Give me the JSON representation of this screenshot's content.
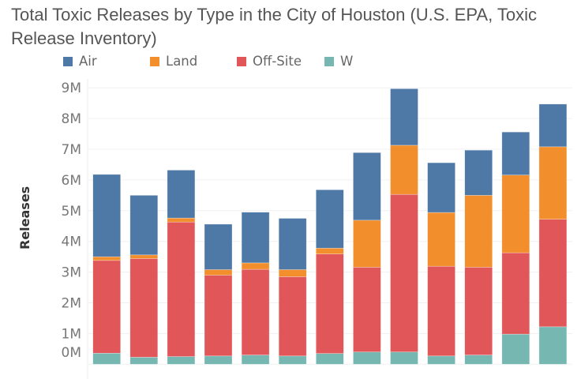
{
  "chart_data": {
    "type": "bar",
    "stacked": true,
    "title": "Total Toxic Releases by Type in the City of Houston (U.S. EPA, Toxic Release Inventory)",
    "xlabel": "",
    "ylabel": "Releases",
    "ylim": [
      0,
      9000000
    ],
    "yticks": [
      "0M",
      "1M",
      "2M",
      "3M",
      "4M",
      "5M",
      "6M",
      "7M",
      "8M",
      "9M"
    ],
    "grid": true,
    "legend_position": "top",
    "series": [
      {
        "name": "W",
        "color": "#76b7b2",
        "values": [
          0.36,
          0.23,
          0.25,
          0.27,
          0.3,
          0.27,
          0.35,
          0.4,
          0.4,
          0.27,
          0.3,
          0.98,
          1.22
        ]
      },
      {
        "name": "Off-Site",
        "color": "#e15759",
        "values": [
          3.02,
          3.21,
          4.38,
          2.63,
          2.79,
          2.58,
          3.24,
          2.76,
          5.13,
          2.92,
          2.86,
          2.65,
          3.5
        ]
      },
      {
        "name": "Land",
        "color": "#f28e2b",
        "values": [
          0.12,
          0.12,
          0.13,
          0.18,
          0.21,
          0.23,
          0.19,
          1.53,
          1.6,
          1.75,
          2.34,
          2.53,
          2.36
        ]
      },
      {
        "name": "Air",
        "color": "#4e79a7",
        "values": [
          2.68,
          1.94,
          1.56,
          1.48,
          1.65,
          1.67,
          1.9,
          2.2,
          1.84,
          1.62,
          1.47,
          1.4,
          1.39
        ]
      }
    ],
    "value_unit": "millions",
    "legend": [
      "Air",
      "Land",
      "Off-Site",
      "W"
    ]
  }
}
